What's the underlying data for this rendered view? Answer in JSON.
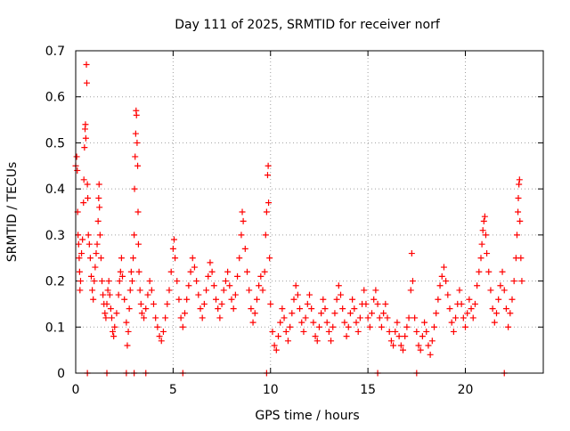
{
  "chart_data": {
    "type": "scatter",
    "title": "Day 111 of 2025, SRMTID for receiver norf",
    "xlabel": "GPS time / hours",
    "ylabel": "SRMTID / TECUs",
    "xlim": [
      0,
      24
    ],
    "ylim": [
      0,
      0.7
    ],
    "xticks": [
      0,
      5,
      10,
      15,
      20
    ],
    "yticks": [
      0,
      0.1,
      0.2,
      0.3,
      0.4,
      0.5,
      0.6,
      0.7
    ],
    "xtick_labels": [
      "0",
      "5",
      "10",
      "15",
      "20"
    ],
    "ytick_labels": [
      "0",
      "0.1",
      "0.2",
      "0.3",
      "0.4",
      "0.5",
      "0.6",
      "0.7"
    ],
    "grid": true,
    "marker": "+",
    "series": [
      {
        "name": "SRMTID",
        "color": "#ff0000",
        "points": [
          [
            0.0,
            0.45
          ],
          [
            0.05,
            0.47
          ],
          [
            0.08,
            0.44
          ],
          [
            0.1,
            0.35
          ],
          [
            0.12,
            0.3
          ],
          [
            0.15,
            0.28
          ],
          [
            0.18,
            0.25
          ],
          [
            0.2,
            0.22
          ],
          [
            0.22,
            0.18
          ],
          [
            0.25,
            0.2
          ],
          [
            0.3,
            0.26
          ],
          [
            0.35,
            0.29
          ],
          [
            0.4,
            0.37
          ],
          [
            0.42,
            0.42
          ],
          [
            0.45,
            0.49
          ],
          [
            0.48,
            0.53
          ],
          [
            0.5,
            0.54
          ],
          [
            0.52,
            0.51
          ],
          [
            0.55,
            0.67
          ],
          [
            0.57,
            0.63
          ],
          [
            0.6,
            0.41
          ],
          [
            0.62,
            0.38
          ],
          [
            0.65,
            0.3
          ],
          [
            0.7,
            0.28
          ],
          [
            0.75,
            0.25
          ],
          [
            0.8,
            0.21
          ],
          [
            0.85,
            0.18
          ],
          [
            0.9,
            0.16
          ],
          [
            0.95,
            0.2
          ],
          [
            1.0,
            0.23
          ],
          [
            1.05,
            0.26
          ],
          [
            1.1,
            0.28
          ],
          [
            1.15,
            0.33
          ],
          [
            1.18,
            0.38
          ],
          [
            1.2,
            0.41
          ],
          [
            1.22,
            0.36
          ],
          [
            1.25,
            0.3
          ],
          [
            1.3,
            0.25
          ],
          [
            1.35,
            0.2
          ],
          [
            1.4,
            0.17
          ],
          [
            1.45,
            0.15
          ],
          [
            1.5,
            0.13
          ],
          [
            1.55,
            0.12
          ],
          [
            1.6,
            0.15
          ],
          [
            1.65,
            0.18
          ],
          [
            1.7,
            0.2
          ],
          [
            1.75,
            0.17
          ],
          [
            1.8,
            0.14
          ],
          [
            1.85,
            0.12
          ],
          [
            1.9,
            0.09
          ],
          [
            1.95,
            0.08
          ],
          [
            2.0,
            0.1
          ],
          [
            2.1,
            0.13
          ],
          [
            2.2,
            0.17
          ],
          [
            2.25,
            0.2
          ],
          [
            2.3,
            0.22
          ],
          [
            2.35,
            0.25
          ],
          [
            2.4,
            0.21
          ],
          [
            2.5,
            0.16
          ],
          [
            2.6,
            0.11
          ],
          [
            2.65,
            0.06
          ],
          [
            2.7,
            0.09
          ],
          [
            2.75,
            0.14
          ],
          [
            2.8,
            0.18
          ],
          [
            2.85,
            0.22
          ],
          [
            2.9,
            0.2
          ],
          [
            2.95,
            0.25
          ],
          [
            3.0,
            0.3
          ],
          [
            3.02,
            0.4
          ],
          [
            3.05,
            0.47
          ],
          [
            3.08,
            0.52
          ],
          [
            3.1,
            0.57
          ],
          [
            3.12,
            0.56
          ],
          [
            3.15,
            0.5
          ],
          [
            3.18,
            0.45
          ],
          [
            3.2,
            0.35
          ],
          [
            3.22,
            0.28
          ],
          [
            3.25,
            0.22
          ],
          [
            3.3,
            0.18
          ],
          [
            3.35,
            0.15
          ],
          [
            3.4,
            0.13
          ],
          [
            3.5,
            0.12
          ],
          [
            3.6,
            0.14
          ],
          [
            3.7,
            0.17
          ],
          [
            3.8,
            0.2
          ],
          [
            3.9,
            0.18
          ],
          [
            4.0,
            0.15
          ],
          [
            4.1,
            0.12
          ],
          [
            4.2,
            0.1
          ],
          [
            4.3,
            0.08
          ],
          [
            4.4,
            0.07
          ],
          [
            4.5,
            0.09
          ],
          [
            4.6,
            0.12
          ],
          [
            4.7,
            0.15
          ],
          [
            4.8,
            0.18
          ],
          [
            4.9,
            0.22
          ],
          [
            5.0,
            0.27
          ],
          [
            5.05,
            0.29
          ],
          [
            5.1,
            0.25
          ],
          [
            5.2,
            0.2
          ],
          [
            5.3,
            0.16
          ],
          [
            5.4,
            0.12
          ],
          [
            5.5,
            0.1
          ],
          [
            5.6,
            0.13
          ],
          [
            5.7,
            0.16
          ],
          [
            5.8,
            0.19
          ],
          [
            5.9,
            0.22
          ],
          [
            6.0,
            0.25
          ],
          [
            6.1,
            0.23
          ],
          [
            6.2,
            0.2
          ],
          [
            6.3,
            0.17
          ],
          [
            6.4,
            0.14
          ],
          [
            6.5,
            0.12
          ],
          [
            6.6,
            0.15
          ],
          [
            6.7,
            0.18
          ],
          [
            6.8,
            0.21
          ],
          [
            6.9,
            0.24
          ],
          [
            7.0,
            0.22
          ],
          [
            7.1,
            0.19
          ],
          [
            7.2,
            0.16
          ],
          [
            7.3,
            0.14
          ],
          [
            7.4,
            0.12
          ],
          [
            7.5,
            0.15
          ],
          [
            7.6,
            0.18
          ],
          [
            7.7,
            0.2
          ],
          [
            7.8,
            0.22
          ],
          [
            7.9,
            0.19
          ],
          [
            8.0,
            0.16
          ],
          [
            8.1,
            0.14
          ],
          [
            8.2,
            0.17
          ],
          [
            8.3,
            0.21
          ],
          [
            8.4,
            0.25
          ],
          [
            8.5,
            0.3
          ],
          [
            8.55,
            0.35
          ],
          [
            8.6,
            0.33
          ],
          [
            8.7,
            0.27
          ],
          [
            8.8,
            0.22
          ],
          [
            8.9,
            0.18
          ],
          [
            9.0,
            0.14
          ],
          [
            9.1,
            0.11
          ],
          [
            9.2,
            0.13
          ],
          [
            9.3,
            0.16
          ],
          [
            9.4,
            0.19
          ],
          [
            9.5,
            0.21
          ],
          [
            9.6,
            0.18
          ],
          [
            9.7,
            0.22
          ],
          [
            9.75,
            0.3
          ],
          [
            9.8,
            0.35
          ],
          [
            9.85,
            0.43
          ],
          [
            9.88,
            0.45
          ],
          [
            9.9,
            0.37
          ],
          [
            9.95,
            0.25
          ],
          [
            10.0,
            0.15
          ],
          [
            10.1,
            0.09
          ],
          [
            10.2,
            0.06
          ],
          [
            10.3,
            0.05
          ],
          [
            10.4,
            0.08
          ],
          [
            10.5,
            0.11
          ],
          [
            10.6,
            0.14
          ],
          [
            10.7,
            0.12
          ],
          [
            10.8,
            0.09
          ],
          [
            10.9,
            0.07
          ],
          [
            11.0,
            0.1
          ],
          [
            11.1,
            0.13
          ],
          [
            11.2,
            0.16
          ],
          [
            11.3,
            0.19
          ],
          [
            11.4,
            0.17
          ],
          [
            11.5,
            0.14
          ],
          [
            11.6,
            0.11
          ],
          [
            11.7,
            0.09
          ],
          [
            11.8,
            0.12
          ],
          [
            11.9,
            0.15
          ],
          [
            12.0,
            0.17
          ],
          [
            12.1,
            0.14
          ],
          [
            12.2,
            0.11
          ],
          [
            12.3,
            0.08
          ],
          [
            12.4,
            0.07
          ],
          [
            12.5,
            0.1
          ],
          [
            12.6,
            0.13
          ],
          [
            12.7,
            0.16
          ],
          [
            12.8,
            0.14
          ],
          [
            12.9,
            0.11
          ],
          [
            13.0,
            0.09
          ],
          [
            13.1,
            0.07
          ],
          [
            13.2,
            0.1
          ],
          [
            13.3,
            0.13
          ],
          [
            13.4,
            0.16
          ],
          [
            13.5,
            0.19
          ],
          [
            13.6,
            0.17
          ],
          [
            13.7,
            0.14
          ],
          [
            13.8,
            0.11
          ],
          [
            13.9,
            0.08
          ],
          [
            14.0,
            0.1
          ],
          [
            14.1,
            0.13
          ],
          [
            14.2,
            0.16
          ],
          [
            14.3,
            0.14
          ],
          [
            14.4,
            0.11
          ],
          [
            14.5,
            0.09
          ],
          [
            14.6,
            0.12
          ],
          [
            14.7,
            0.15
          ],
          [
            14.8,
            0.18
          ],
          [
            14.9,
            0.15
          ],
          [
            15.0,
            0.12
          ],
          [
            15.1,
            0.1
          ],
          [
            15.2,
            0.13
          ],
          [
            15.3,
            0.16
          ],
          [
            15.4,
            0.18
          ],
          [
            15.5,
            0.15
          ],
          [
            15.6,
            0.12
          ],
          [
            15.7,
            0.1
          ],
          [
            15.8,
            0.13
          ],
          [
            15.9,
            0.15
          ],
          [
            16.0,
            0.12
          ],
          [
            16.1,
            0.09
          ],
          [
            16.2,
            0.07
          ],
          [
            16.3,
            0.06
          ],
          [
            16.4,
            0.09
          ],
          [
            16.5,
            0.11
          ],
          [
            16.6,
            0.08
          ],
          [
            16.7,
            0.06
          ],
          [
            16.8,
            0.05
          ],
          [
            16.9,
            0.08
          ],
          [
            17.0,
            0.1
          ],
          [
            17.1,
            0.12
          ],
          [
            17.2,
            0.18
          ],
          [
            17.25,
            0.26
          ],
          [
            17.3,
            0.2
          ],
          [
            17.4,
            0.12
          ],
          [
            17.5,
            0.09
          ],
          [
            17.6,
            0.06
          ],
          [
            17.7,
            0.05
          ],
          [
            17.8,
            0.08
          ],
          [
            17.9,
            0.11
          ],
          [
            18.0,
            0.09
          ],
          [
            18.1,
            0.06
          ],
          [
            18.2,
            0.04
          ],
          [
            18.3,
            0.07
          ],
          [
            18.4,
            0.1
          ],
          [
            18.5,
            0.13
          ],
          [
            18.6,
            0.16
          ],
          [
            18.7,
            0.19
          ],
          [
            18.8,
            0.21
          ],
          [
            18.9,
            0.23
          ],
          [
            19.0,
            0.2
          ],
          [
            19.1,
            0.17
          ],
          [
            19.2,
            0.14
          ],
          [
            19.3,
            0.11
          ],
          [
            19.4,
            0.09
          ],
          [
            19.5,
            0.12
          ],
          [
            19.6,
            0.15
          ],
          [
            19.7,
            0.18
          ],
          [
            19.8,
            0.15
          ],
          [
            19.9,
            0.12
          ],
          [
            20.0,
            0.1
          ],
          [
            20.1,
            0.13
          ],
          [
            20.2,
            0.16
          ],
          [
            20.3,
            0.14
          ],
          [
            20.4,
            0.12
          ],
          [
            20.5,
            0.15
          ],
          [
            20.6,
            0.19
          ],
          [
            20.7,
            0.22
          ],
          [
            20.8,
            0.25
          ],
          [
            20.85,
            0.28
          ],
          [
            20.9,
            0.31
          ],
          [
            20.95,
            0.33
          ],
          [
            21.0,
            0.34
          ],
          [
            21.05,
            0.3
          ],
          [
            21.1,
            0.26
          ],
          [
            21.2,
            0.22
          ],
          [
            21.3,
            0.18
          ],
          [
            21.4,
            0.14
          ],
          [
            21.5,
            0.11
          ],
          [
            21.6,
            0.13
          ],
          [
            21.7,
            0.16
          ],
          [
            21.8,
            0.19
          ],
          [
            21.9,
            0.22
          ],
          [
            22.0,
            0.18
          ],
          [
            22.1,
            0.14
          ],
          [
            22.2,
            0.1
          ],
          [
            22.3,
            0.13
          ],
          [
            22.4,
            0.16
          ],
          [
            22.5,
            0.2
          ],
          [
            22.6,
            0.25
          ],
          [
            22.65,
            0.3
          ],
          [
            22.7,
            0.35
          ],
          [
            22.72,
            0.38
          ],
          [
            22.75,
            0.41
          ],
          [
            22.78,
            0.42
          ],
          [
            22.8,
            0.33
          ],
          [
            22.85,
            0.25
          ],
          [
            22.9,
            0.2
          ],
          [
            0.6,
            0.0
          ],
          [
            1.6,
            0.0
          ],
          [
            2.6,
            0.0
          ],
          [
            3.0,
            0.0
          ],
          [
            3.6,
            0.0
          ],
          [
            5.5,
            0.0
          ],
          [
            9.8,
            0.0
          ],
          [
            15.5,
            0.0
          ],
          [
            17.5,
            0.0
          ],
          [
            22.0,
            0.0
          ]
        ]
      }
    ]
  }
}
